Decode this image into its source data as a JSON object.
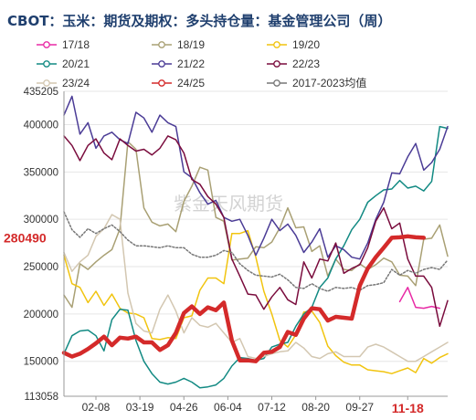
{
  "chart_data": {
    "type": "line",
    "title": "CBOT：玉米：期货及期权：多头持仓量：基金管理公司（周）",
    "watermark": "紫金天风期货",
    "y_ticks": [
      435205,
      400000,
      350000,
      300000,
      250000,
      200000,
      150000,
      113058
    ],
    "ylim": [
      113058,
      435205
    ],
    "current_value": 280490,
    "x_tick_labels": [
      "02-08",
      "03-19",
      "04-26",
      "06-04",
      "07-12",
      "08-20",
      "09-27",
      "11-18"
    ],
    "x_tick_positions": [
      4,
      9.5,
      15,
      20.5,
      26,
      31.5,
      37,
      43
    ],
    "highlight_x_label": "11-18",
    "xlim": [
      0,
      48
    ],
    "series": [
      {
        "name": "17/18",
        "color": "#e82aa5",
        "width": 1.5,
        "dash": "",
        "x": [
          42,
          43,
          44,
          45,
          46,
          47
        ],
        "values": [
          213000,
          228000,
          207000,
          206000,
          208000,
          206000
        ]
      },
      {
        "name": "18/19",
        "color": "#a9a074",
        "width": 1.5,
        "dash": "",
        "x": [
          0,
          1,
          2,
          3,
          4,
          5,
          6,
          7,
          8,
          9,
          10,
          11,
          12,
          13,
          14,
          15,
          16,
          17,
          18,
          19,
          20,
          21,
          22,
          23,
          24,
          25,
          26,
          27,
          28,
          29,
          30,
          31,
          32,
          33,
          34,
          35,
          36,
          37,
          38,
          39,
          40,
          41,
          42,
          43,
          44,
          45,
          46,
          47,
          48
        ],
        "values": [
          220000,
          207000,
          253000,
          247000,
          255000,
          262000,
          268000,
          290000,
          382000,
          374000,
          312000,
          297000,
          293000,
          295000,
          287000,
          319000,
          335000,
          355000,
          352000,
          302000,
          298000,
          257000,
          258000,
          259000,
          271000,
          270000,
          276000,
          291000,
          312000,
          291000,
          292000,
          266000,
          272000,
          240000,
          258000,
          247000,
          246000,
          253000,
          247000,
          252000,
          259000,
          255000,
          241000,
          240000,
          230000,
          279000,
          280000,
          294000,
          261000
        ]
      },
      {
        "name": "19/20",
        "color": "#f1c40f",
        "width": 1.5,
        "dash": "",
        "x": [
          0,
          1,
          2,
          3,
          4,
          5,
          6,
          7,
          8,
          9,
          10,
          11,
          12,
          13,
          14,
          15,
          16,
          17,
          18,
          19,
          20,
          21,
          22,
          23,
          24,
          25,
          26,
          27,
          28,
          29,
          30,
          31,
          32,
          33,
          34,
          35,
          36,
          37,
          38,
          39,
          40,
          41,
          42,
          43,
          44,
          45,
          46,
          47,
          48
        ],
        "values": [
          262000,
          232000,
          228000,
          212000,
          224000,
          209000,
          221000,
          206000,
          201000,
          200000,
          196000,
          174000,
          173000,
          175000,
          174000,
          196000,
          198000,
          225000,
          238000,
          238000,
          232000,
          285000,
          285000,
          288000,
          260000,
          224000,
          200000,
          172000,
          165000,
          178000,
          202000,
          203000,
          191000,
          166000,
          156000,
          149000,
          146000,
          146000,
          141000,
          140000,
          139000,
          137000,
          140000,
          143000,
          138000,
          153000,
          148000,
          154000,
          158000
        ]
      },
      {
        "name": "20/21",
        "color": "#128a83",
        "width": 1.5,
        "dash": "",
        "x": [
          0,
          1,
          2,
          3,
          4,
          5,
          6,
          7,
          8,
          9,
          10,
          11,
          12,
          13,
          14,
          15,
          16,
          17,
          18,
          19,
          20,
          21,
          22,
          23,
          24,
          25,
          26,
          27,
          28,
          29,
          30,
          31,
          32,
          33,
          34,
          35,
          36,
          37,
          38,
          39,
          40,
          41,
          42,
          43,
          44,
          45,
          46,
          47,
          48
        ],
        "values": [
          158000,
          177000,
          182000,
          183000,
          177000,
          161000,
          194000,
          205000,
          204000,
          172000,
          150000,
          137000,
          128000,
          126000,
          128000,
          132000,
          128000,
          122000,
          123000,
          125000,
          132000,
          145000,
          154000,
          153000,
          151000,
          153000,
          165000,
          168000,
          170000,
          187000,
          200000,
          207000,
          228000,
          238000,
          258000,
          272000,
          289000,
          300000,
          318000,
          325000,
          331000,
          332000,
          341000,
          333000,
          335000,
          330000,
          340000,
          398000,
          396000
        ]
      },
      {
        "name": "21/22",
        "color": "#4b3c96",
        "width": 1.5,
        "dash": "",
        "x": [
          0,
          1,
          2,
          3,
          4,
          5,
          6,
          7,
          8,
          9,
          10,
          11,
          12,
          13,
          14,
          15,
          16,
          17,
          18,
          19,
          20,
          21,
          22,
          23,
          24,
          25,
          26,
          27,
          28,
          29,
          30,
          31,
          32,
          33,
          34,
          35,
          36,
          37,
          38,
          39,
          40,
          41,
          42,
          43,
          44,
          45,
          46,
          47,
          48
        ],
        "values": [
          410000,
          430000,
          390000,
          402000,
          375000,
          388000,
          392000,
          384000,
          380000,
          413000,
          407000,
          392000,
          410000,
          402000,
          398000,
          350000,
          344000,
          328000,
          316000,
          320000,
          302000,
          298000,
          300000,
          283000,
          262000,
          280000,
          300000,
          288000,
          295000,
          283000,
          265000,
          276000,
          290000,
          260000,
          272000,
          268000,
          260000,
          258000,
          275000,
          300000,
          318000,
          349000,
          348000,
          366000,
          380000,
          352000,
          360000,
          374000,
          398000
        ]
      },
      {
        "name": "22/23",
        "color": "#7a0c3d",
        "width": 1.5,
        "dash": "",
        "x": [
          0,
          1,
          2,
          3,
          4,
          5,
          6,
          7,
          8,
          9,
          10,
          11,
          12,
          13,
          14,
          15,
          16,
          17,
          18,
          19,
          20,
          21,
          22,
          23,
          24,
          25,
          26,
          27,
          28,
          29,
          30,
          31,
          32,
          33,
          34,
          35,
          36,
          37,
          38,
          39,
          40,
          41,
          42,
          43,
          44,
          45,
          46,
          47,
          48
        ],
        "values": [
          388000,
          378000,
          362000,
          378000,
          385000,
          370000,
          363000,
          385000,
          378000,
          372000,
          374000,
          368000,
          375000,
          388000,
          384000,
          370000,
          342000,
          337000,
          324000,
          316000,
          302000,
          258000,
          240000,
          221000,
          220000,
          205000,
          218000,
          228000,
          215000,
          210000,
          255000,
          238000,
          258000,
          256000,
          275000,
          243000,
          248000,
          252000,
          270000,
          298000,
          312000,
          290000,
          296000,
          258000,
          240000,
          240000,
          228000,
          187000,
          214000
        ]
      },
      {
        "name": "23/24",
        "color": "#d3c7b1",
        "width": 1.5,
        "dash": "",
        "x": [
          0,
          1,
          2,
          3,
          4,
          5,
          6,
          7,
          8,
          9,
          10,
          11,
          12,
          13,
          14,
          15,
          16,
          17,
          18,
          19,
          20,
          21,
          22,
          23,
          24,
          25,
          26,
          27,
          28,
          29,
          30,
          31,
          32,
          33,
          34,
          35,
          36,
          37,
          38,
          39,
          40,
          41,
          42,
          43,
          44,
          45,
          46,
          47,
          48
        ],
        "values": [
          265000,
          245000,
          255000,
          262000,
          282000,
          290000,
          305000,
          300000,
          222000,
          190000,
          182000,
          180000,
          205000,
          220000,
          203000,
          180000,
          196000,
          188000,
          186000,
          190000,
          180000,
          170000,
          174000,
          155000,
          153000,
          155000,
          158000,
          160000,
          161000,
          170000,
          164000,
          155000,
          153000,
          158000,
          160000,
          155000,
          155000,
          155000,
          165000,
          168000,
          165000,
          160000,
          155000,
          150000,
          150000,
          155000,
          160000,
          165000,
          170000
        ]
      },
      {
        "name": "24/25",
        "color": "#d42a2a",
        "width": 4.5,
        "dash": "",
        "x": [
          0,
          1,
          2,
          3,
          4,
          5,
          6,
          7,
          8,
          9,
          10,
          11,
          12,
          13,
          14,
          15,
          16,
          17,
          18,
          19,
          20,
          21,
          22,
          23,
          24,
          25,
          26,
          27,
          28,
          29,
          30,
          31,
          32,
          33,
          34,
          35,
          36,
          37,
          38,
          39,
          40,
          41,
          42,
          43,
          44,
          45
        ],
        "values": [
          159000,
          155000,
          158000,
          163000,
          169000,
          176000,
          167000,
          175000,
          174000,
          176000,
          170000,
          170000,
          162000,
          167000,
          180000,
          201000,
          208000,
          200000,
          207000,
          204000,
          212000,
          172000,
          151000,
          151000,
          150000,
          159000,
          160000,
          165000,
          181000,
          178000,
          195000,
          206000,
          205000,
          193000,
          197000,
          196000,
          195000,
          230000,
          248000,
          260000,
          270000,
          280490,
          281000,
          282000,
          281000,
          280490
        ]
      },
      {
        "name": "2017-2023均值",
        "color": "#777777",
        "width": 1.5,
        "dash": "2 2",
        "x": [
          0,
          1,
          2,
          3,
          4,
          5,
          6,
          7,
          8,
          9,
          10,
          11,
          12,
          13,
          14,
          15,
          16,
          17,
          18,
          19,
          20,
          21,
          22,
          23,
          24,
          25,
          26,
          27,
          28,
          29,
          30,
          31,
          32,
          33,
          34,
          35,
          36,
          37,
          38,
          39,
          40,
          41,
          42,
          43,
          44,
          45,
          46,
          47,
          48
        ],
        "values": [
          308000,
          289000,
          281000,
          290000,
          285000,
          290000,
          294000,
          287000,
          278000,
          272000,
          272000,
          271000,
          270000,
          272000,
          270000,
          270000,
          263000,
          260000,
          260000,
          262000,
          267000,
          265000,
          253000,
          246000,
          241000,
          240000,
          239000,
          242000,
          236000,
          228000,
          227000,
          232000,
          227000,
          224000,
          228000,
          227000,
          228000,
          225000,
          230000,
          231000,
          233000,
          247000,
          241000,
          246000,
          243000,
          247000,
          249000,
          247000,
          257000
        ]
      }
    ]
  }
}
